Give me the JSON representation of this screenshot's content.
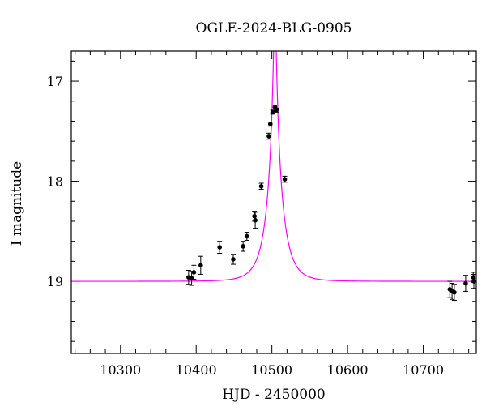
{
  "chart_data": {
    "type": "scatter",
    "title": "OGLE-2024-BLG-0905",
    "xlabel": "HJD - 2450000",
    "ylabel": "I magnitude",
    "xlim": [
      10235,
      10770
    ],
    "ylim": [
      19.72,
      16.7
    ],
    "y_inverted": true,
    "grid": false,
    "xticks": [
      10300,
      10400,
      10500,
      10600,
      10700
    ],
    "yticks": [
      17,
      18,
      19
    ],
    "series": [
      {
        "role": "observations",
        "color": "#000000",
        "points": [
          {
            "x": 10390,
            "y": 18.96,
            "err": 0.07
          },
          {
            "x": 10394,
            "y": 18.97,
            "err": 0.07
          },
          {
            "x": 10397,
            "y": 18.91,
            "err": 0.07
          },
          {
            "x": 10406,
            "y": 18.84,
            "err": 0.09
          },
          {
            "x": 10431,
            "y": 18.66,
            "err": 0.06
          },
          {
            "x": 10449,
            "y": 18.78,
            "err": 0.05
          },
          {
            "x": 10462,
            "y": 18.65,
            "err": 0.05
          },
          {
            "x": 10467,
            "y": 18.55,
            "err": 0.04
          },
          {
            "x": 10477,
            "y": 18.35,
            "err": 0.05
          },
          {
            "x": 10478,
            "y": 18.39,
            "err": 0.08
          },
          {
            "x": 10486,
            "y": 18.05,
            "err": 0.03
          },
          {
            "x": 10496,
            "y": 17.55,
            "err": 0.03
          },
          {
            "x": 10498,
            "y": 17.43,
            "err": 0.02
          },
          {
            "x": 10501,
            "y": 17.31,
            "err": 0.02
          },
          {
            "x": 10504,
            "y": 17.26,
            "err": 0.02
          },
          {
            "x": 10506,
            "y": 17.29,
            "err": 0.02
          },
          {
            "x": 10517,
            "y": 17.98,
            "err": 0.03
          },
          {
            "x": 10735,
            "y": 19.08,
            "err": 0.08
          },
          {
            "x": 10738,
            "y": 19.1,
            "err": 0.08
          },
          {
            "x": 10741,
            "y": 19.11,
            "err": 0.08
          },
          {
            "x": 10756,
            "y": 19.02,
            "err": 0.08
          },
          {
            "x": 10766,
            "y": 18.96,
            "err": 0.05
          },
          {
            "x": 10770,
            "y": 19.0,
            "err": 0.07
          }
        ]
      },
      {
        "role": "model",
        "color": "#ff00ff",
        "t0": 10504,
        "tE": 20,
        "u0": 0.085,
        "base_mag": 19.0
      }
    ]
  }
}
